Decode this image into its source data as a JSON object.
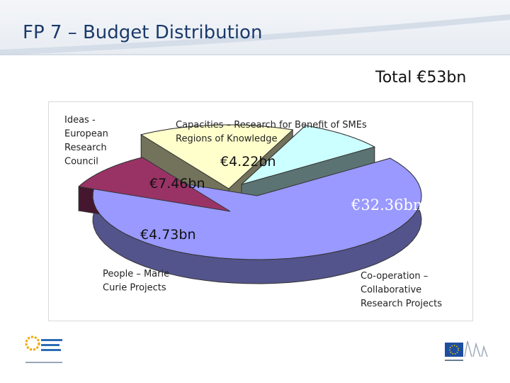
{
  "slide": {
    "title": "FP 7 – Budget Distribution",
    "total_label": "Total €53bn"
  },
  "chart_data": {
    "type": "pie",
    "currency": "€",
    "unit": "bn",
    "total": 53,
    "slices": [
      {
        "name": "Co-operation – Collaborative Research Projects",
        "value": 32.36,
        "value_label": "€32.36bn",
        "color": "#9999ff"
      },
      {
        "name": "People – Marie Curie Projects",
        "value": 4.73,
        "value_label": "€4.73bn",
        "color": "#993366"
      },
      {
        "name": "Ideas - European Research Council",
        "value": 7.46,
        "value_label": "€7.46bn",
        "color": "#ffffcc"
      },
      {
        "name": "Capacities – Research for Benefit of SMEs Regions of Knowledge",
        "value": 4.22,
        "value_label": "€4.22bn",
        "color": "#ccffff"
      }
    ],
    "legend": "none"
  },
  "logos": {
    "left": "enterprise europe network",
    "right": "European Commission"
  },
  "colors": {
    "title": "#1b3a6b",
    "header_band": "#e7ecf2"
  }
}
